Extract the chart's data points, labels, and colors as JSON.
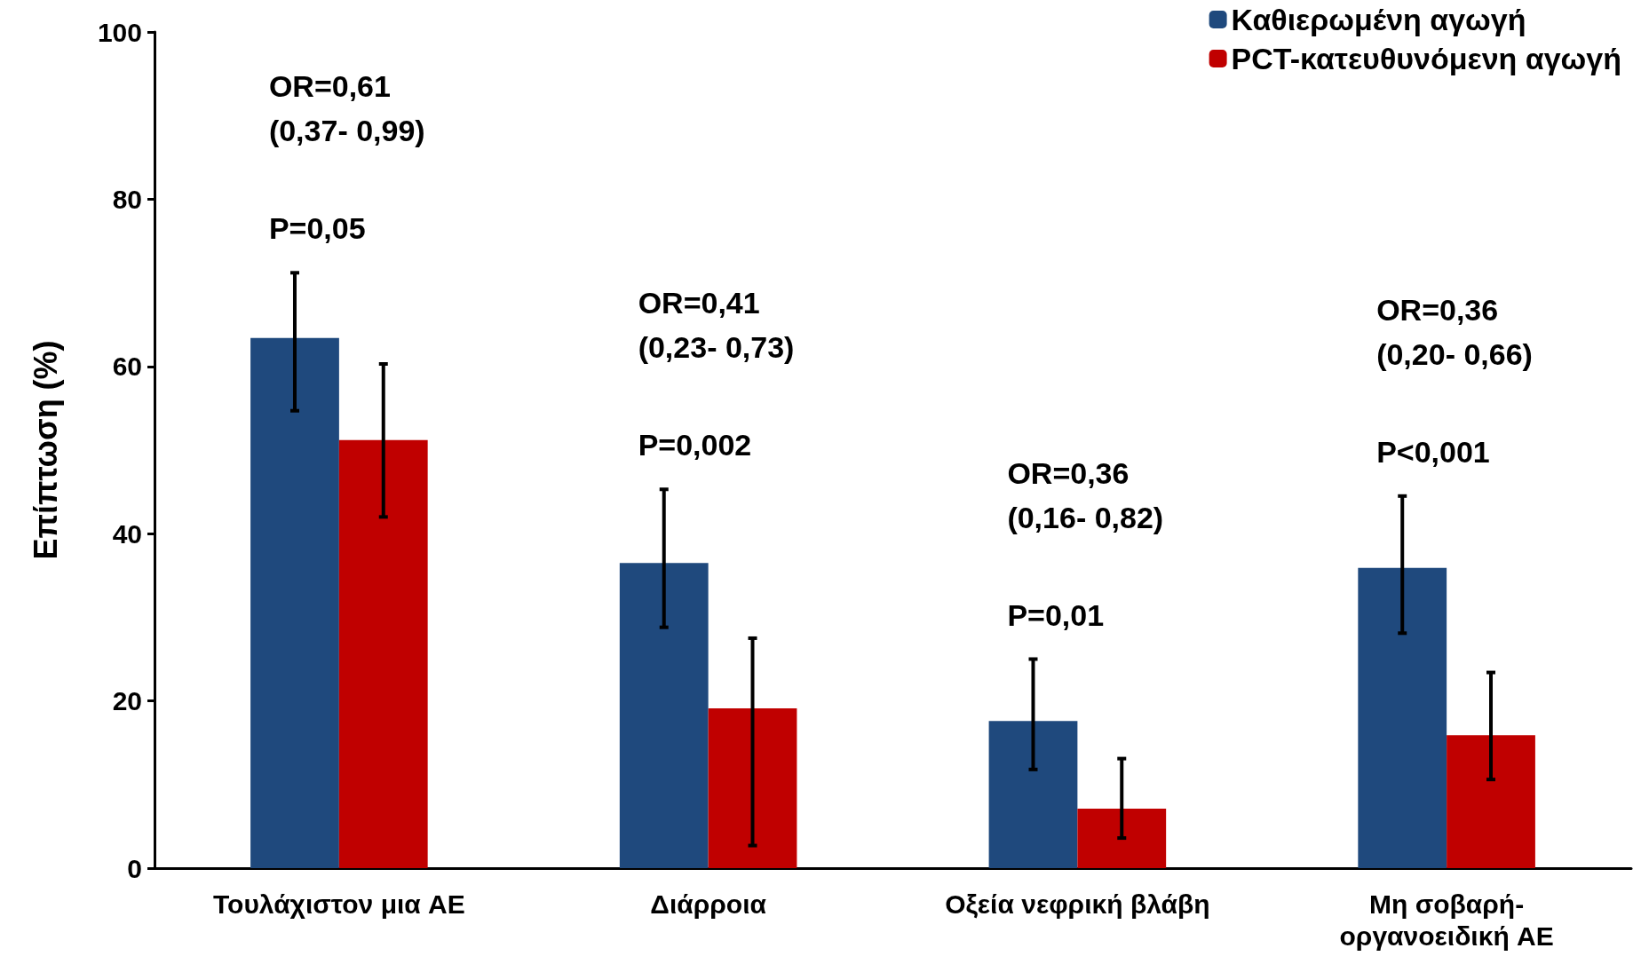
{
  "chart_data": {
    "type": "bar",
    "ylabel": "Επίπτωση (%)",
    "categories": [
      "Τουλάχιστον μια AE",
      "Διάρροια",
      "Οξεία νεφρική βλάβη",
      "Μη σοβαρή-\nοργανοειδική AE"
    ],
    "series": [
      {
        "name": "Καθιερωμένη αγωγή",
        "color": "#1f497d",
        "values": [
          63.4,
          36.5,
          17.6,
          35.9
        ],
        "errors": [
          [
            54.7,
            71.2
          ],
          [
            28.8,
            45.3
          ],
          [
            11.8,
            25.0
          ],
          [
            28.1,
            44.5
          ]
        ]
      },
      {
        "name": "PCT-κατευθυνόμενη αγωγή",
        "color": "#c00000",
        "values": [
          51.2,
          19.1,
          7.1,
          15.9
        ],
        "errors": [
          [
            42.0,
            60.3
          ],
          [
            2.7,
            27.5
          ],
          [
            3.6,
            13.1
          ],
          [
            10.6,
            23.4
          ]
        ]
      }
    ],
    "ylim": [
      0,
      100
    ],
    "yticks": [
      0,
      20,
      40,
      60,
      80,
      100
    ],
    "grid": false,
    "legend": "top right",
    "annotations": [
      "OR=0,61\n(0,37- 0,99)",
      "P=0,05",
      "OR=0,41\n(0,23- 0,73)",
      "P=0,002",
      "OR=0,36\n(0,16- 0,82)",
      "P=0,01",
      "OR=0,36\n(0,20- 0,66)",
      "P<0,001"
    ]
  }
}
